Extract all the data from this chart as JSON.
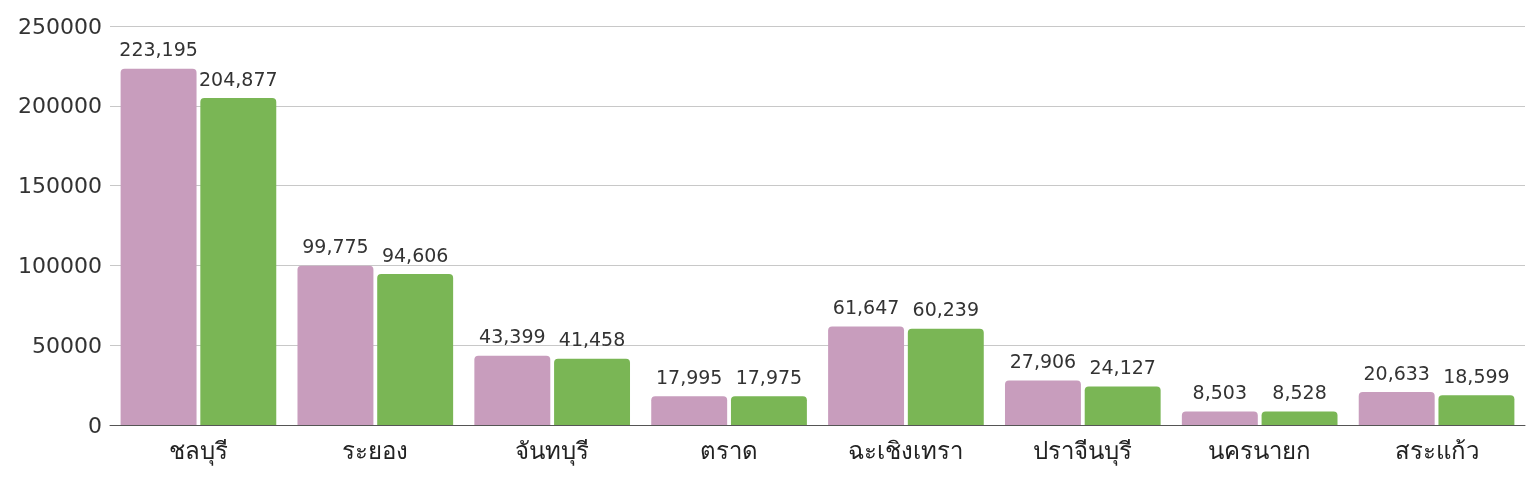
{
  "chart_data": {
    "type": "bar",
    "categories": [
      "ชลบุรี",
      "ระยอง",
      "จันทบุรี",
      "ตราด",
      "ฉะเชิงเทรา",
      "ปราจีนบุรี",
      "นครนายก",
      "สระแก้ว"
    ],
    "series": [
      {
        "color": "#c89dbd",
        "values": [
          223195,
          99775,
          43399,
          17995,
          61647,
          27906,
          8503,
          20633
        ],
        "value_labels": [
          "223,195",
          "99,775",
          "43,399",
          "17,995",
          "61,647",
          "27,906",
          "8,503",
          "20,633"
        ]
      },
      {
        "color": "#7ab655",
        "values": [
          204877,
          94606,
          41458,
          17975,
          60239,
          24127,
          8528,
          18599
        ],
        "value_labels": [
          "204,877",
          "94,606",
          "41,458",
          "17,975",
          "60,239",
          "24,127",
          "8,528",
          "18,599"
        ]
      }
    ],
    "ylim": [
      0,
      250000
    ],
    "yticks": [
      0,
      50000,
      100000,
      150000,
      200000,
      250000
    ],
    "grid": "y"
  }
}
